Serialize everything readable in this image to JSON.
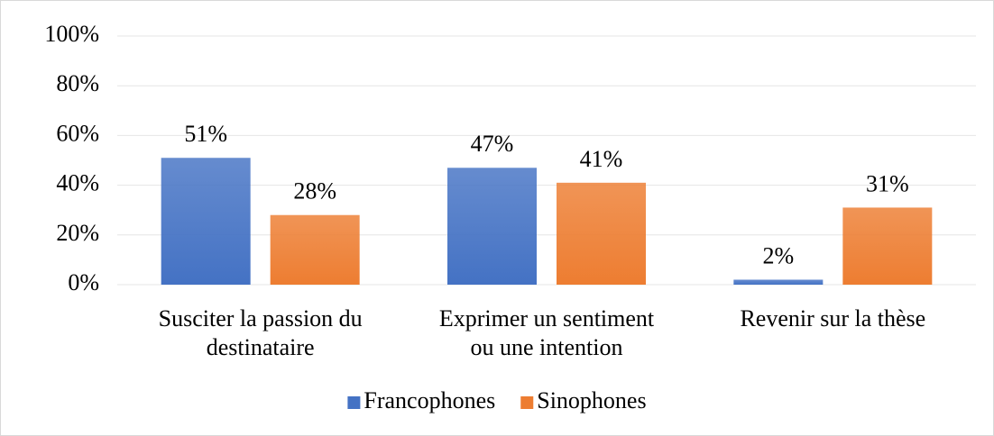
{
  "chart_data": {
    "type": "bar",
    "categories": [
      "Susciter la passion du destinataire",
      "Exprimer un sentiment ou une intention",
      "Revenir sur la thèse"
    ],
    "series": [
      {
        "name": "Francophones",
        "color": "#4472c4",
        "values": [
          51,
          47,
          2
        ],
        "value_labels": [
          "51%",
          "47%",
          "2%"
        ]
      },
      {
        "name": "Sinophones",
        "color": "#ed7d31",
        "values": [
          28,
          41,
          31
        ],
        "value_labels": [
          "28%",
          "41%",
          "31%"
        ]
      }
    ],
    "ylim": [
      0,
      100
    ],
    "yticks": [
      {
        "value": 0,
        "label": "0%"
      },
      {
        "value": 20,
        "label": "20%"
      },
      {
        "value": 40,
        "label": "40%"
      },
      {
        "value": 60,
        "label": "60%"
      },
      {
        "value": 80,
        "label": "80%"
      },
      {
        "value": 100,
        "label": "100%"
      }
    ],
    "grid": true,
    "legend": "bottom"
  }
}
